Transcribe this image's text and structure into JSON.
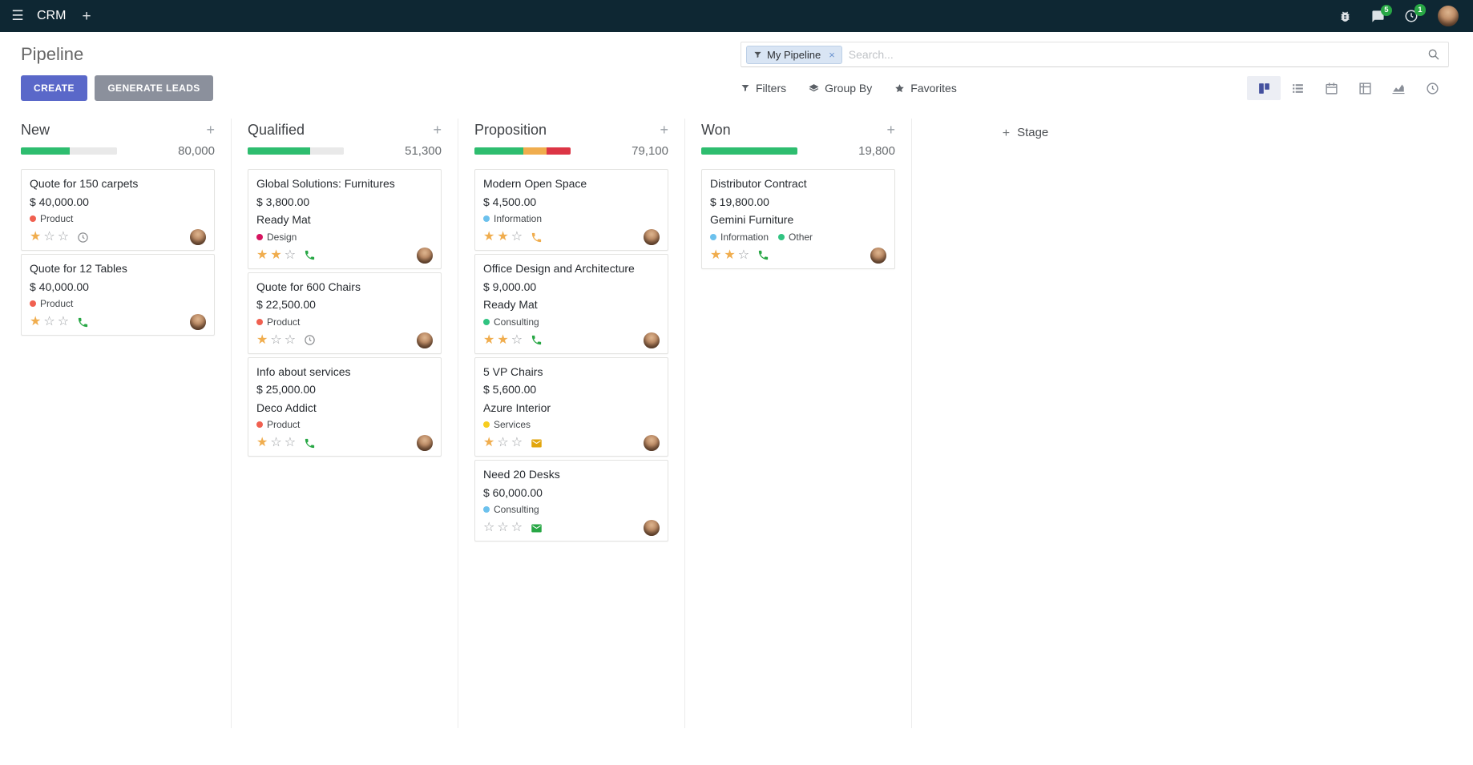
{
  "icons": {
    "hamburger": "☰",
    "plus": "+",
    "star_filled": "★",
    "star_empty": "☆",
    "close": "×"
  },
  "colors": {
    "topbar_bg": "#0e2733",
    "primary_button": "#5a68c9",
    "secondary_button": "#8b909c",
    "success_green": "#28a745",
    "warning_orange": "#f0ad4e",
    "danger_red": "#dc3545",
    "star_gold": "#f0ad4e",
    "progress_empty": "#e9e9e9",
    "facet_bg": "#d9e5f4"
  },
  "topbar": {
    "app_name": "CRM",
    "messages_badge": "5",
    "activities_badge": "1"
  },
  "control_panel": {
    "title": "Pipeline",
    "search": {
      "facet_label": "My Pipeline",
      "placeholder": "Search..."
    },
    "buttons": {
      "create": "CREATE",
      "generate_leads": "GENERATE LEADS"
    },
    "menus": {
      "filters": "Filters",
      "group_by": "Group By",
      "favorites": "Favorites"
    },
    "view_switcher": [
      {
        "name": "kanban",
        "active": true
      },
      {
        "name": "list",
        "active": false
      },
      {
        "name": "calendar",
        "active": false
      },
      {
        "name": "pivot",
        "active": false
      },
      {
        "name": "graph",
        "active": false
      },
      {
        "name": "activity",
        "active": false
      }
    ]
  },
  "kanban": {
    "add_stage_label": "Stage",
    "columns": [
      {
        "name": "New",
        "total": "80,000",
        "progress": [
          {
            "color": "#2ebd6f",
            "pct": 51
          },
          {
            "color": "#e9e9e9",
            "pct": 49
          }
        ],
        "cards": [
          {
            "title": "Quote for 150 carpets",
            "amount": "$ 40,000.00",
            "partner": "",
            "tags": [
              {
                "label": "Product",
                "color": "#f06050"
              }
            ],
            "stars": 1,
            "activity": {
              "icon": "clock",
              "color": "#8f9194"
            }
          },
          {
            "title": "Quote for 12 Tables",
            "amount": "$ 40,000.00",
            "partner": "",
            "tags": [
              {
                "label": "Product",
                "color": "#f06050"
              }
            ],
            "stars": 1,
            "activity": {
              "icon": "phone",
              "color": "#28a745"
            }
          }
        ]
      },
      {
        "name": "Qualified",
        "total": "51,300",
        "progress": [
          {
            "color": "#2ebd6f",
            "pct": 65
          },
          {
            "color": "#e9e9e9",
            "pct": 35
          }
        ],
        "cards": [
          {
            "title": "Global Solutions: Furnitures",
            "amount": "$ 3,800.00",
            "partner": "Ready Mat",
            "tags": [
              {
                "label": "Design",
                "color": "#d6145f"
              }
            ],
            "stars": 2,
            "activity": {
              "icon": "phone",
              "color": "#28a745"
            }
          },
          {
            "title": "Quote for 600 Chairs",
            "amount": "$ 22,500.00",
            "partner": "",
            "tags": [
              {
                "label": "Product",
                "color": "#f06050"
              }
            ],
            "stars": 1,
            "activity": {
              "icon": "clock",
              "color": "#8f9194"
            }
          },
          {
            "title": "Info about services",
            "amount": "$ 25,000.00",
            "partner": "Deco Addict",
            "tags": [
              {
                "label": "Product",
                "color": "#f06050"
              }
            ],
            "stars": 1,
            "activity": {
              "icon": "phone",
              "color": "#28a745"
            }
          }
        ]
      },
      {
        "name": "Proposition",
        "total": "79,100",
        "progress": [
          {
            "color": "#2ebd6f",
            "pct": 51
          },
          {
            "color": "#f0ad4e",
            "pct": 24
          },
          {
            "color": "#dc3545",
            "pct": 25
          }
        ],
        "cards": [
          {
            "title": "Modern Open Space",
            "amount": "$ 4,500.00",
            "partner": "",
            "tags": [
              {
                "label": "Information",
                "color": "#6cc1ed"
              }
            ],
            "stars": 2,
            "activity": {
              "icon": "phone",
              "color": "#f0ad4e"
            }
          },
          {
            "title": "Office Design and Architecture",
            "amount": "$ 9,000.00",
            "partner": "Ready Mat",
            "tags": [
              {
                "label": "Consulting",
                "color": "#30c381"
              }
            ],
            "stars": 2,
            "activity": {
              "icon": "phone",
              "color": "#28a745"
            }
          },
          {
            "title": "5 VP Chairs",
            "amount": "$ 5,600.00",
            "partner": "Azure Interior",
            "tags": [
              {
                "label": "Services",
                "color": "#f7cd1f"
              }
            ],
            "stars": 1,
            "activity": {
              "icon": "envelope",
              "color": "#e2a60d"
            }
          },
          {
            "title": "Need 20 Desks",
            "amount": "$ 60,000.00",
            "partner": "",
            "tags": [
              {
                "label": "Consulting",
                "color": "#6cc1ed"
              }
            ],
            "stars": 0,
            "activity": {
              "icon": "envelope",
              "color": "#28a745"
            }
          }
        ]
      },
      {
        "name": "Won",
        "total": "19,800",
        "progress": [
          {
            "color": "#2ebd6f",
            "pct": 100
          }
        ],
        "cards": [
          {
            "title": "Distributor Contract",
            "amount": "$ 19,800.00",
            "partner": "Gemini Furniture",
            "tags": [
              {
                "label": "Information",
                "color": "#6cc1ed"
              },
              {
                "label": "Other",
                "color": "#30c381"
              }
            ],
            "stars": 2,
            "activity": {
              "icon": "phone",
              "color": "#28a745"
            }
          }
        ]
      }
    ]
  }
}
